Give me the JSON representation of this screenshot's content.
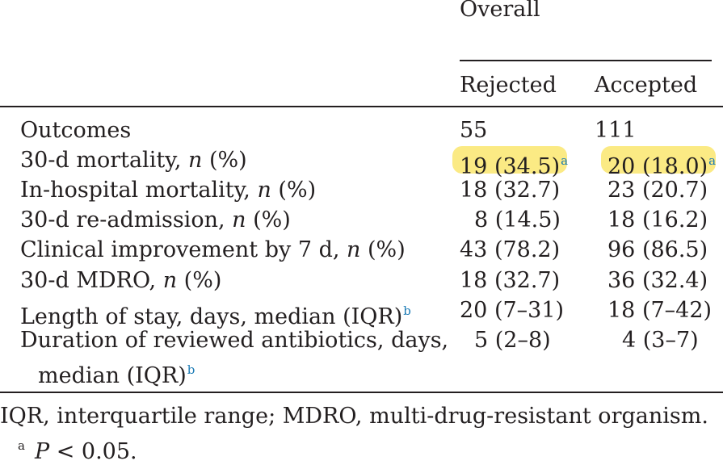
{
  "header": {
    "group": "Overall",
    "col1": "Rejected",
    "col2": "Accepted"
  },
  "rows": [
    {
      "label": "Outcomes",
      "italic": "",
      "tail": "",
      "c1": "55",
      "c2": "111"
    },
    {
      "label": "30-d mortality, ",
      "italic": "n",
      "tail": " (%)",
      "c1": "19 (34.5)",
      "c1_sup": "a",
      "c2": "20 (18.0)",
      "c2_sup": "a"
    },
    {
      "label": "In-hospital mortality, ",
      "italic": "n",
      "tail": " (%)",
      "c1": "18 (32.7)",
      "c2": "23 (20.7)"
    },
    {
      "label": "30-d re-admission, ",
      "italic": "n",
      "tail": " (%)",
      "c1": "8 (14.5)",
      "c2": "18 (16.2)"
    },
    {
      "label": "Clinical improvement by 7 d, ",
      "italic": "n",
      "tail": " (%)",
      "c1": "43 (78.2)",
      "c2": "96 (86.5)"
    },
    {
      "label": "30-d MDRO, ",
      "italic": "n",
      "tail": " (%)",
      "c1": "18 (32.7)",
      "c2": "36 (32.4)"
    },
    {
      "label": "Length of stay, days, median (IQR)",
      "label_sup": "b",
      "c1": "20 (7–31)",
      "c2": "18 (7–42)"
    },
    {
      "label": "Duration of reviewed antibiotics, days,",
      "label2": "median (IQR)",
      "label2_sup": "b",
      "c1": "5 (2–8)",
      "c2": "4 (3–7)"
    }
  ],
  "footnotes": {
    "abbrev": "IQR, interquartile range; MDRO, multi-drug-resistant organism.",
    "a_marker": "a",
    "a_italic": "P",
    "a_text": " < 0.05."
  }
}
